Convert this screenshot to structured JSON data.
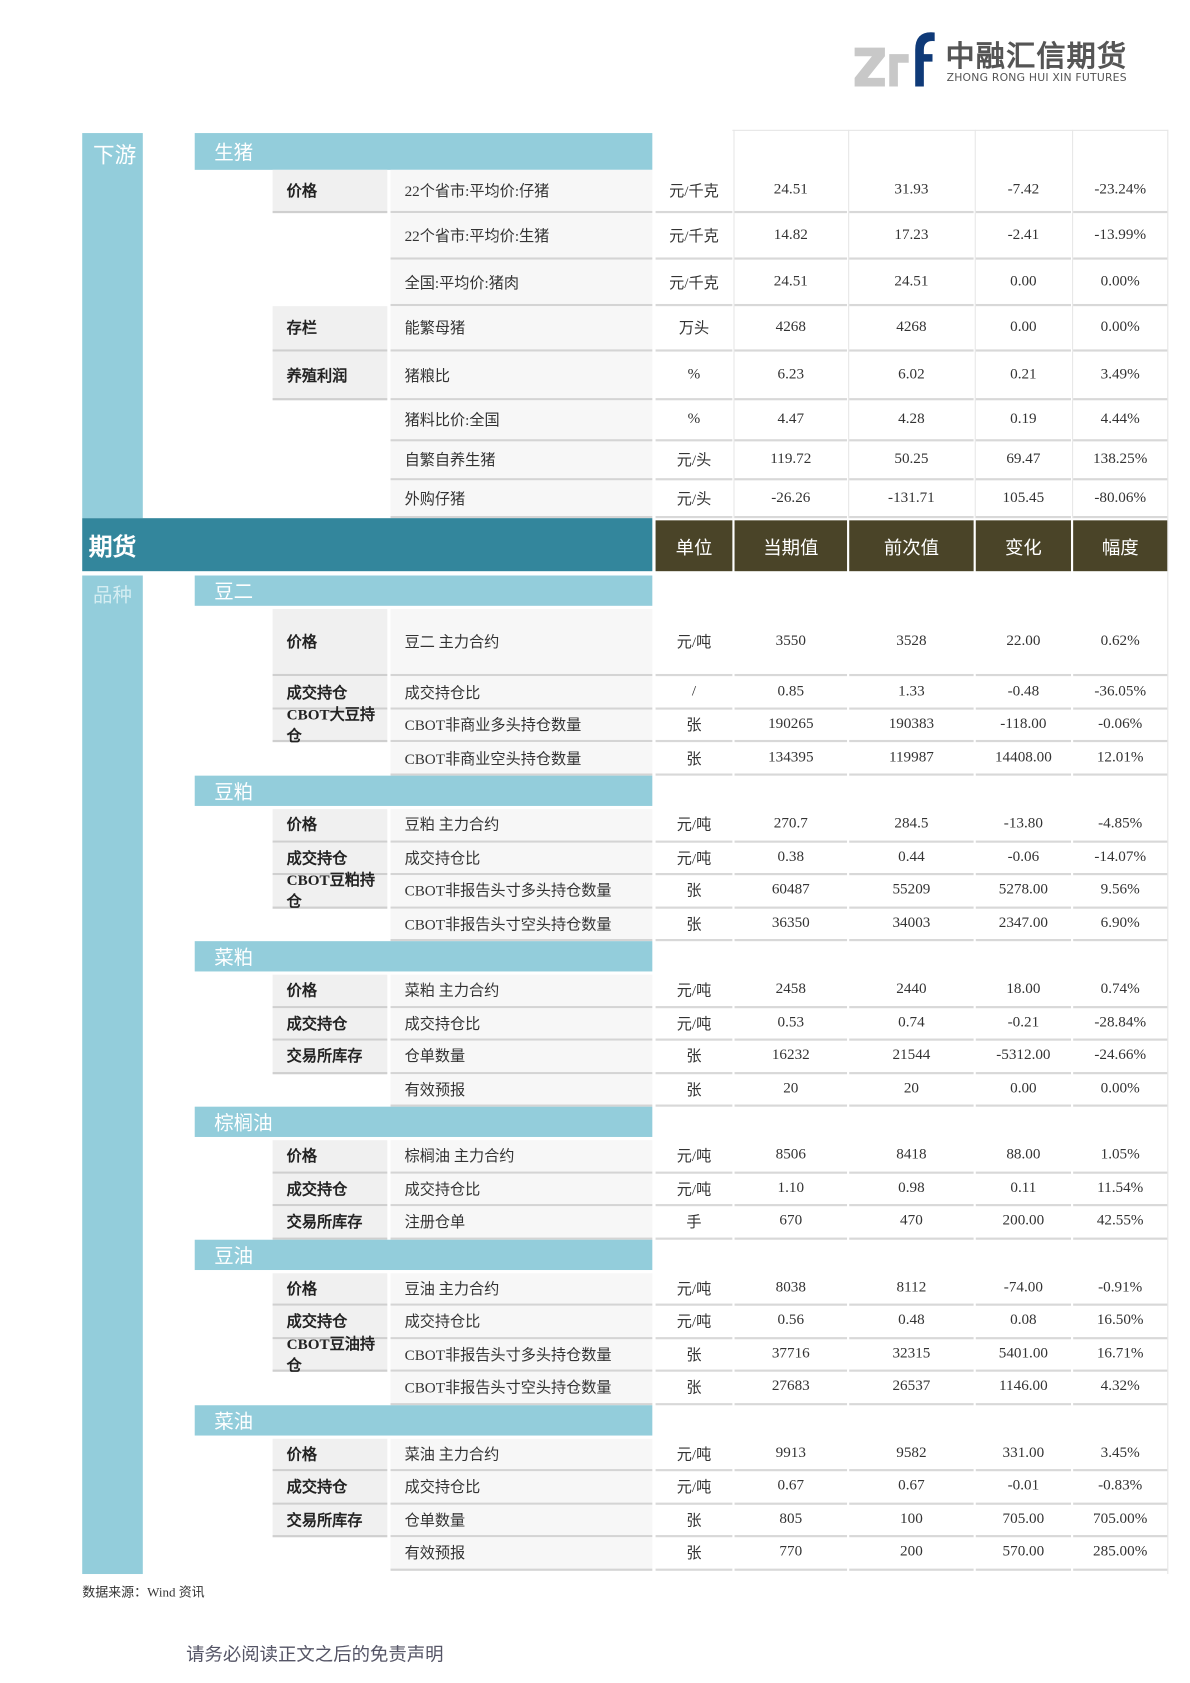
{
  "logo": {
    "mark": "zrf",
    "name": "中融汇信期货",
    "sub": "ZHONG RONG HUI XIN FUTURES",
    "colors": {
      "mark_gray": "#c8c8c8",
      "mark_blue": "#0f3a78"
    }
  },
  "colors": {
    "sidebar": "#93cddb",
    "band": "#33869c",
    "column_header": "#4a4428"
  },
  "downstream": {
    "label": "下游",
    "categories": [
      {
        "name": "生猪",
        "rows": [
          {
            "sub": "价格",
            "name": "22个省市:平均价:仔猪",
            "unit": "元/千克",
            "cur": "24.51",
            "prev": "31.93",
            "chg": "-7.42",
            "pct": "-23.24%"
          },
          {
            "sub": "",
            "name": "22个省市:平均价:生猪",
            "unit": "元/千克",
            "cur": "14.82",
            "prev": "17.23",
            "chg": "-2.41",
            "pct": "-13.99%"
          },
          {
            "sub": "",
            "name": "全国:平均价:猪肉",
            "unit": "元/千克",
            "cur": "24.51",
            "prev": "24.51",
            "chg": "0.00",
            "pct": "0.00%"
          },
          {
            "sub": "存栏",
            "name": "能繁母猪",
            "unit": "万头",
            "cur": "4268",
            "prev": "4268",
            "chg": "0.00",
            "pct": "0.00%"
          },
          {
            "sub": "养殖利润",
            "name": "猪粮比",
            "unit": "%",
            "cur": "6.23",
            "prev": "6.02",
            "chg": "0.21",
            "pct": "3.49%"
          },
          {
            "sub": "",
            "name": "猪料比价:全国",
            "unit": "%",
            "cur": "4.47",
            "prev": "4.28",
            "chg": "0.19",
            "pct": "4.44%"
          },
          {
            "sub": "",
            "name": "自繁自养生猪",
            "unit": "元/头",
            "cur": "119.72",
            "prev": "50.25",
            "chg": "69.47",
            "pct": "138.25%"
          },
          {
            "sub": "",
            "name": "外购仔猪",
            "unit": "元/头",
            "cur": "-26.26",
            "prev": "-131.71",
            "chg": "105.45",
            "pct": "-80.06%"
          }
        ]
      }
    ]
  },
  "futures": {
    "label": "期货",
    "sidebar_label": "品种",
    "columns": [
      "单位",
      "当期值",
      "前次值",
      "变化",
      "幅度"
    ],
    "categories": [
      {
        "name": "豆二",
        "rows": [
          {
            "sub": "价格",
            "name": "豆二 主力合约",
            "unit": "元/吨",
            "cur": "3550",
            "prev": "3528",
            "chg": "22.00",
            "pct": "0.62%"
          },
          {
            "sub": "成交持仓",
            "name": "成交持仓比",
            "unit": "/",
            "cur": "0.85",
            "prev": "1.33",
            "chg": "-0.48",
            "pct": "-36.05%"
          },
          {
            "sub": "CBOT大豆持仓",
            "name": "CBOT非商业多头持仓数量",
            "unit": "张",
            "cur": "190265",
            "prev": "190383",
            "chg": "-118.00",
            "pct": "-0.06%"
          },
          {
            "sub": "",
            "name": "CBOT非商业空头持仓数量",
            "unit": "张",
            "cur": "134395",
            "prev": "119987",
            "chg": "14408.00",
            "pct": "12.01%"
          }
        ]
      },
      {
        "name": "豆粕",
        "rows": [
          {
            "sub": "价格",
            "name": "豆粕 主力合约",
            "unit": "元/吨",
            "cur": "270.7",
            "prev": "284.5",
            "chg": "-13.80",
            "pct": "-4.85%"
          },
          {
            "sub": "成交持仓",
            "name": "成交持仓比",
            "unit": "元/吨",
            "cur": "0.38",
            "prev": "0.44",
            "chg": "-0.06",
            "pct": "-14.07%"
          },
          {
            "sub": "CBOT豆粕持仓",
            "name": "CBOT非报告头寸多头持仓数量",
            "unit": "张",
            "cur": "60487",
            "prev": "55209",
            "chg": "5278.00",
            "pct": "9.56%"
          },
          {
            "sub": "",
            "name": "CBOT非报告头寸空头持仓数量",
            "unit": "张",
            "cur": "36350",
            "prev": "34003",
            "chg": "2347.00",
            "pct": "6.90%"
          }
        ]
      },
      {
        "name": "菜粕",
        "rows": [
          {
            "sub": "价格",
            "name": "菜粕 主力合约",
            "unit": "元/吨",
            "cur": "2458",
            "prev": "2440",
            "chg": "18.00",
            "pct": "0.74%"
          },
          {
            "sub": "成交持仓",
            "name": "成交持仓比",
            "unit": "元/吨",
            "cur": "0.53",
            "prev": "0.74",
            "chg": "-0.21",
            "pct": "-28.84%"
          },
          {
            "sub": "交易所库存",
            "name": "仓单数量",
            "unit": "张",
            "cur": "16232",
            "prev": "21544",
            "chg": "-5312.00",
            "pct": "-24.66%"
          },
          {
            "sub": "",
            "name": "有效预报",
            "unit": "张",
            "cur": "20",
            "prev": "20",
            "chg": "0.00",
            "pct": "0.00%"
          }
        ]
      },
      {
        "name": "棕榈油",
        "rows": [
          {
            "sub": "价格",
            "name": "棕榈油 主力合约",
            "unit": "元/吨",
            "cur": "8506",
            "prev": "8418",
            "chg": "88.00",
            "pct": "1.05%"
          },
          {
            "sub": "成交持仓",
            "name": "成交持仓比",
            "unit": "元/吨",
            "cur": "1.10",
            "prev": "0.98",
            "chg": "0.11",
            "pct": "11.54%"
          },
          {
            "sub": "交易所库存",
            "name": "注册仓单",
            "unit": "手",
            "cur": "670",
            "prev": "470",
            "chg": "200.00",
            "pct": "42.55%"
          }
        ]
      },
      {
        "name": "豆油",
        "rows": [
          {
            "sub": "价格",
            "name": "豆油 主力合约",
            "unit": "元/吨",
            "cur": "8038",
            "prev": "8112",
            "chg": "-74.00",
            "pct": "-0.91%"
          },
          {
            "sub": "成交持仓",
            "name": "成交持仓比",
            "unit": "元/吨",
            "cur": "0.56",
            "prev": "0.48",
            "chg": "0.08",
            "pct": "16.50%"
          },
          {
            "sub": "CBOT豆油持仓",
            "name": "CBOT非报告头寸多头持仓数量",
            "unit": "张",
            "cur": "37716",
            "prev": "32315",
            "chg": "5401.00",
            "pct": "16.71%"
          },
          {
            "sub": "",
            "name": "CBOT非报告头寸空头持仓数量",
            "unit": "张",
            "cur": "27683",
            "prev": "26537",
            "chg": "1146.00",
            "pct": "4.32%"
          }
        ]
      },
      {
        "name": "菜油",
        "rows": [
          {
            "sub": "价格",
            "name": "菜油 主力合约",
            "unit": "元/吨",
            "cur": "9913",
            "prev": "9582",
            "chg": "331.00",
            "pct": "3.45%"
          },
          {
            "sub": "成交持仓",
            "name": "成交持仓比",
            "unit": "元/吨",
            "cur": "0.67",
            "prev": "0.67",
            "chg": "-0.01",
            "pct": "-0.83%"
          },
          {
            "sub": "交易所库存",
            "name": "仓单数量",
            "unit": "张",
            "cur": "805",
            "prev": "100",
            "chg": "705.00",
            "pct": "705.00%"
          },
          {
            "sub": "",
            "name": "有效预报",
            "unit": "张",
            "cur": "770",
            "prev": "200",
            "chg": "570.00",
            "pct": "285.00%"
          }
        ]
      }
    ]
  },
  "footer": {
    "source": "数据来源：Wind 资讯",
    "disclaimer": "请务必阅读正文之后的免责声明"
  }
}
